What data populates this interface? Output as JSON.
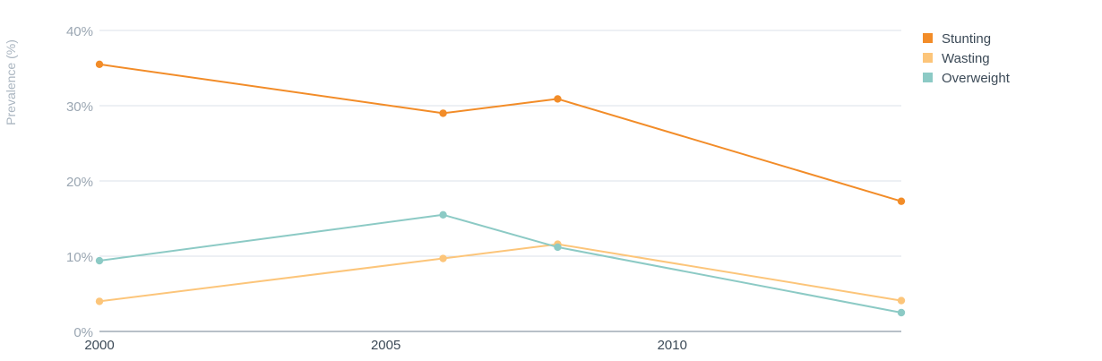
{
  "chart_data": {
    "type": "line",
    "title": "",
    "xlabel": "",
    "ylabel": "Prevalence (%)",
    "x": [
      2000,
      2006,
      2008,
      2014
    ],
    "xlim": [
      2000,
      2014
    ],
    "ylim": [
      0,
      40
    ],
    "x_ticks": [
      2000,
      2005,
      2010
    ],
    "x_tick_labels": [
      "2000",
      "2005",
      "2010"
    ],
    "y_ticks": [
      0,
      10,
      20,
      30,
      40
    ],
    "y_tick_labels": [
      "0%",
      "10%",
      "20%",
      "30%",
      "40%"
    ],
    "grid": true,
    "legend_position": "top-right",
    "series": [
      {
        "name": "Stunting",
        "color": "#f28c28",
        "values": [
          35.5,
          29.0,
          30.9,
          17.3
        ]
      },
      {
        "name": "Wasting",
        "color": "#fcc57a",
        "values": [
          4.0,
          9.7,
          11.6,
          4.1
        ]
      },
      {
        "name": "Overweight",
        "color": "#8ccac5",
        "values": [
          9.4,
          15.5,
          11.2,
          2.5
        ]
      }
    ]
  }
}
